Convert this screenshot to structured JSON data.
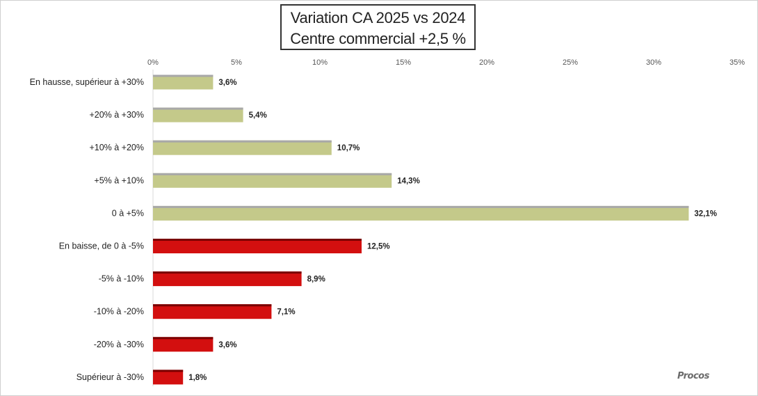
{
  "title": {
    "line1": "Variation CA 2025 vs 2024",
    "line2": "Centre commercial   +2,5 %"
  },
  "watermark": "Procos",
  "colors": {
    "positive": "#c4c98a",
    "negative": "#d30f0f",
    "positive_top": "#a8a8a8",
    "negative_top": "#7a0000",
    "label": "#222222",
    "tick": "#555555"
  },
  "chart_data": {
    "type": "bar",
    "orientation": "horizontal",
    "categories": [
      "En hausse, supérieur à +30%",
      "+20% à +30%",
      "+10% à +20%",
      "+5% à +10%",
      "0 à +5%",
      "En baisse, de 0 à -5%",
      "-5% à -10%",
      "-10% à -20%",
      "-20% à -30%",
      "Supérieur à -30%"
    ],
    "values": [
      3.6,
      5.4,
      10.7,
      14.3,
      32.1,
      12.5,
      8.9,
      7.1,
      3.6,
      1.8
    ],
    "value_labels": [
      "3,6%",
      "5,4%",
      "10,7%",
      "14,3%",
      "32,1%",
      "12,5%",
      "8,9%",
      "7,1%",
      "3,6%",
      "1,8%"
    ],
    "groups": [
      "positive",
      "positive",
      "positive",
      "positive",
      "positive",
      "negative",
      "negative",
      "negative",
      "negative",
      "negative"
    ],
    "xlim": [
      0,
      35
    ],
    "xticks": [
      0,
      5,
      10,
      15,
      20,
      25,
      30,
      35
    ],
    "xtick_labels": [
      "0%",
      "5%",
      "10%",
      "15%",
      "20%",
      "25%",
      "30%",
      "35%"
    ],
    "xaxis_position": "top",
    "grid": false,
    "legend": false
  }
}
